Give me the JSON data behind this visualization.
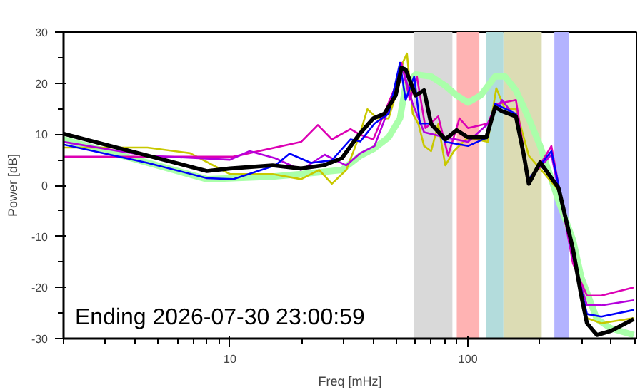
{
  "chart_data": {
    "type": "line",
    "xlabel": "Freq [mHz]",
    "ylabel": "Power [dB]",
    "log": "x",
    "grid": false,
    "line_style": "solid",
    "marker": "none",
    "xlim": [
      2,
      510
    ],
    "ylim": [
      -30,
      30
    ],
    "xticks": [
      {
        "value": 2,
        "label": null
      },
      {
        "value": 3,
        "label": null
      },
      {
        "value": 4,
        "label": null
      },
      {
        "value": 5,
        "label": null
      },
      {
        "value": 6,
        "label": null
      },
      {
        "value": 7,
        "label": null
      },
      {
        "value": 8,
        "label": null
      },
      {
        "value": 9,
        "label": null
      },
      10,
      {
        "value": 20,
        "label": null
      },
      {
        "value": 30,
        "label": null
      },
      {
        "value": 40,
        "label": null
      },
      {
        "value": 50,
        "label": null
      },
      {
        "value": 60,
        "label": null
      },
      {
        "value": 70,
        "label": null
      },
      {
        "value": 80,
        "label": null
      },
      {
        "value": 90,
        "label": null
      },
      100,
      {
        "value": 200,
        "label": null
      },
      {
        "value": 300,
        "label": null
      },
      {
        "value": 400,
        "label": null
      },
      {
        "value": 500,
        "label": null
      }
    ],
    "yticks": [
      -30,
      {
        "value": -25,
        "label": null
      },
      -20,
      {
        "value": -15,
        "label": null
      },
      -10,
      {
        "value": -5,
        "label": null
      },
      0,
      {
        "value": 5,
        "label": null
      },
      10,
      {
        "value": 15,
        "label": null
      },
      20,
      {
        "value": 25,
        "label": null
      },
      30
    ],
    "bands": [
      {
        "axis": "x",
        "from": 59.4,
        "to": 86,
        "color": "#d9d9d9"
      },
      {
        "axis": "x",
        "from": 89.7,
        "to": 111.6,
        "color": "#ffb3b3"
      },
      {
        "axis": "x",
        "from": 119.5,
        "to": 140.9,
        "color": "#b3dcdc"
      },
      {
        "axis": "x",
        "from": 140.9,
        "to": 204,
        "color": "#dcdcb4"
      },
      {
        "axis": "x",
        "from": 230.6,
        "to": 265,
        "color": "#b3b3ff"
      }
    ],
    "annotations": [
      "Ending 2026-07-30 23:00:59"
    ],
    "series": [
      {
        "color": "#aaffaa",
        "x": [
          2.0,
          8.0,
          15.1,
          19.9,
          29.5,
          35.3,
          40,
          46.4,
          51.8,
          54.7,
          60.2,
          70,
          80.3,
          89.6,
          100,
          113,
          130,
          143,
          159,
          180,
          201,
          240,
          276,
          299,
          348,
          399,
          497
        ],
        "values": [
          9,
          1.2,
          1.7,
          2.2,
          3,
          5.8,
          7.1,
          9.4,
          13.1,
          19.5,
          21.7,
          21.3,
          19.5,
          17.6,
          16.2,
          17.6,
          21.3,
          21.3,
          18.6,
          13.1,
          7.7,
          -3,
          -10.7,
          -18,
          -26.2,
          -28,
          -29.3
        ]
      },
      {
        "color": "#c8c800",
        "x": [
          2.0,
          4.5,
          6.8,
          10,
          15.1,
          19.9,
          23.7,
          26.8,
          30.8,
          34.8,
          37.8,
          41.6,
          46.4,
          51.8,
          53.2,
          55.4,
          58.6,
          61.9,
          65.4,
          70,
          75,
          80.3,
          87.2,
          100,
          121,
          131.5,
          143,
          159,
          180,
          210,
          240,
          276,
          316,
          363,
          497
        ],
        "values": [
          7.4,
          7.4,
          6.3,
          2.2,
          2.2,
          1.2,
          3,
          0.3,
          3,
          9.4,
          14.9,
          13.1,
          13.1,
          20.4,
          24,
          25.8,
          14,
          12,
          7.7,
          6.7,
          12,
          3.9,
          6.7,
          9.4,
          8.5,
          19,
          14.9,
          14.9,
          5.8,
          2.2,
          -1,
          -13,
          -26,
          -27,
          -26
        ]
      },
      {
        "color": "#dc00b4",
        "x": [
          2.0,
          10.3,
          19.9,
          23.4,
          26.8,
          32.1,
          35.3,
          40,
          49.7,
          52.5,
          57,
          61,
          66.3,
          75,
          82.5,
          92.1,
          100,
          121,
          131.5,
          159,
          180,
          224,
          276,
          316,
          363,
          497
        ],
        "values": [
          5.6,
          5.6,
          8.5,
          11.8,
          9,
          11,
          9.9,
          9,
          19.5,
          24,
          16.7,
          21.3,
          11.2,
          13.5,
          5.8,
          13.1,
          11.2,
          12.1,
          15.9,
          16.7,
          0.3,
          7.7,
          -15.3,
          -21.6,
          -21.6,
          -20
        ]
      },
      {
        "color": "#b400dc",
        "x": [
          2.0,
          4.5,
          10,
          12.1,
          15.5,
          19.9,
          25,
          30.8,
          35.3,
          40.5,
          49.7,
          53.2,
          58.6,
          65.4,
          80.3,
          100,
          121,
          139,
          159,
          180,
          224,
          276,
          316,
          363,
          497
        ],
        "values": [
          8.5,
          5.8,
          5,
          6.7,
          5.3,
          3,
          6,
          3.9,
          6.3,
          7.7,
          18.6,
          23,
          15.9,
          10.4,
          9.4,
          8.5,
          12,
          16.7,
          13.1,
          1.2,
          6,
          -14.3,
          -23.5,
          -23.5,
          -22.5
        ]
      },
      {
        "color": "#0000fa",
        "x": [
          2.0,
          4.5,
          8.0,
          10.3,
          15.5,
          17.8,
          21.9,
          26.8,
          32.1,
          35.3,
          40.5,
          46.4,
          51.8,
          54.7,
          59.4,
          62.8,
          70,
          80.3,
          100,
          121,
          130,
          159,
          180,
          224,
          276,
          316,
          363,
          497
        ],
        "values": [
          8,
          4.4,
          1.4,
          1.2,
          3.9,
          6.2,
          4.4,
          4.9,
          9,
          8.6,
          12.1,
          14,
          24,
          16.7,
          21.3,
          12.1,
          12.1,
          8.5,
          7.7,
          9.4,
          15.9,
          14,
          1.2,
          6.7,
          -13.4,
          -25.2,
          -25.7,
          -24.4
        ]
      },
      {
        "color": "#000000",
        "x": [
          2.0,
          8.0,
          10,
          15.1,
          19.9,
          24.7,
          29.5,
          34.8,
          40,
          44.5,
          49.7,
          52.5,
          54.7,
          60.2,
          65.4,
          70,
          80.3,
          89.6,
          100,
          119.5,
          130,
          139,
          159,
          171,
          180,
          201,
          240,
          251,
          276,
          299,
          316,
          348,
          399,
          497
        ],
        "values": [
          10.1,
          2.8,
          3.3,
          3.9,
          3.3,
          3.9,
          5.3,
          9.9,
          13.1,
          14,
          17.6,
          23,
          22.7,
          17.6,
          18.6,
          12,
          9,
          10.8,
          9.4,
          9.4,
          15.3,
          14.5,
          13.5,
          6.3,
          0.3,
          4.5,
          -0.5,
          -4.3,
          -12.5,
          -21.6,
          -27,
          -29.3,
          -28.5,
          -26.2
        ]
      }
    ]
  }
}
